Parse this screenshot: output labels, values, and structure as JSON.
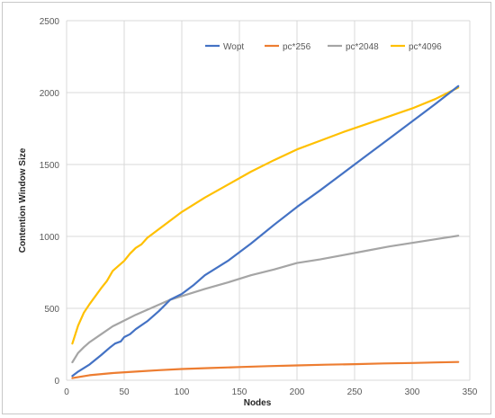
{
  "chart_data": {
    "type": "line",
    "title": "",
    "xlabel": "Nodes",
    "ylabel": "Contention Window Size",
    "xlim": [
      0,
      350
    ],
    "ylim": [
      0,
      2500
    ],
    "x_ticks": [
      0,
      50,
      100,
      150,
      200,
      250,
      300,
      350
    ],
    "y_ticks": [
      0,
      500,
      1000,
      1500,
      2000,
      2500
    ],
    "grid": "vertical and horizontal major gridlines",
    "legend_position": "top-right, horizontal",
    "series": [
      {
        "name": "Wopt",
        "color": "#4472C4",
        "points": [
          [
            5,
            30
          ],
          [
            10,
            60
          ],
          [
            20,
            110
          ],
          [
            30,
            175
          ],
          [
            38,
            230
          ],
          [
            42,
            255
          ],
          [
            47,
            270
          ],
          [
            50,
            300
          ],
          [
            55,
            320
          ],
          [
            60,
            355
          ],
          [
            70,
            410
          ],
          [
            80,
            480
          ],
          [
            90,
            560
          ],
          [
            100,
            600
          ],
          [
            110,
            660
          ],
          [
            120,
            730
          ],
          [
            140,
            830
          ],
          [
            160,
            950
          ],
          [
            180,
            1080
          ],
          [
            200,
            1205
          ],
          [
            220,
            1320
          ],
          [
            240,
            1440
          ],
          [
            260,
            1560
          ],
          [
            280,
            1680
          ],
          [
            300,
            1800
          ],
          [
            320,
            1920
          ],
          [
            340,
            2045
          ]
        ]
      },
      {
        "name": "pc*256",
        "color": "#ED7D31",
        "points": [
          [
            5,
            15
          ],
          [
            20,
            35
          ],
          [
            40,
            50
          ],
          [
            60,
            60
          ],
          [
            80,
            70
          ],
          [
            100,
            78
          ],
          [
            125,
            85
          ],
          [
            150,
            92
          ],
          [
            175,
            98
          ],
          [
            200,
            103
          ],
          [
            225,
            108
          ],
          [
            250,
            112
          ],
          [
            275,
            117
          ],
          [
            300,
            120
          ],
          [
            320,
            124
          ],
          [
            340,
            127
          ]
        ]
      },
      {
        "name": "pc*2048",
        "color": "#A5A5A5",
        "points": [
          [
            5,
            125
          ],
          [
            10,
            190
          ],
          [
            15,
            230
          ],
          [
            20,
            265
          ],
          [
            30,
            320
          ],
          [
            40,
            375
          ],
          [
            50,
            415
          ],
          [
            60,
            455
          ],
          [
            70,
            490
          ],
          [
            80,
            525
          ],
          [
            90,
            560
          ],
          [
            100,
            585
          ],
          [
            120,
            635
          ],
          [
            140,
            680
          ],
          [
            160,
            730
          ],
          [
            180,
            770
          ],
          [
            200,
            815
          ],
          [
            220,
            840
          ],
          [
            240,
            870
          ],
          [
            260,
            900
          ],
          [
            280,
            930
          ],
          [
            300,
            955
          ],
          [
            320,
            980
          ],
          [
            340,
            1005
          ]
        ]
      },
      {
        "name": "pc*4096",
        "color": "#FFC000",
        "points": [
          [
            5,
            255
          ],
          [
            10,
            380
          ],
          [
            15,
            470
          ],
          [
            20,
            530
          ],
          [
            30,
            640
          ],
          [
            35,
            690
          ],
          [
            40,
            760
          ],
          [
            50,
            830
          ],
          [
            55,
            880
          ],
          [
            60,
            920
          ],
          [
            65,
            945
          ],
          [
            70,
            990
          ],
          [
            80,
            1050
          ],
          [
            90,
            1110
          ],
          [
            100,
            1170
          ],
          [
            120,
            1270
          ],
          [
            140,
            1360
          ],
          [
            160,
            1450
          ],
          [
            180,
            1530
          ],
          [
            200,
            1605
          ],
          [
            220,
            1665
          ],
          [
            240,
            1725
          ],
          [
            260,
            1780
          ],
          [
            280,
            1835
          ],
          [
            300,
            1890
          ],
          [
            320,
            1955
          ],
          [
            340,
            2035
          ]
        ]
      }
    ]
  }
}
